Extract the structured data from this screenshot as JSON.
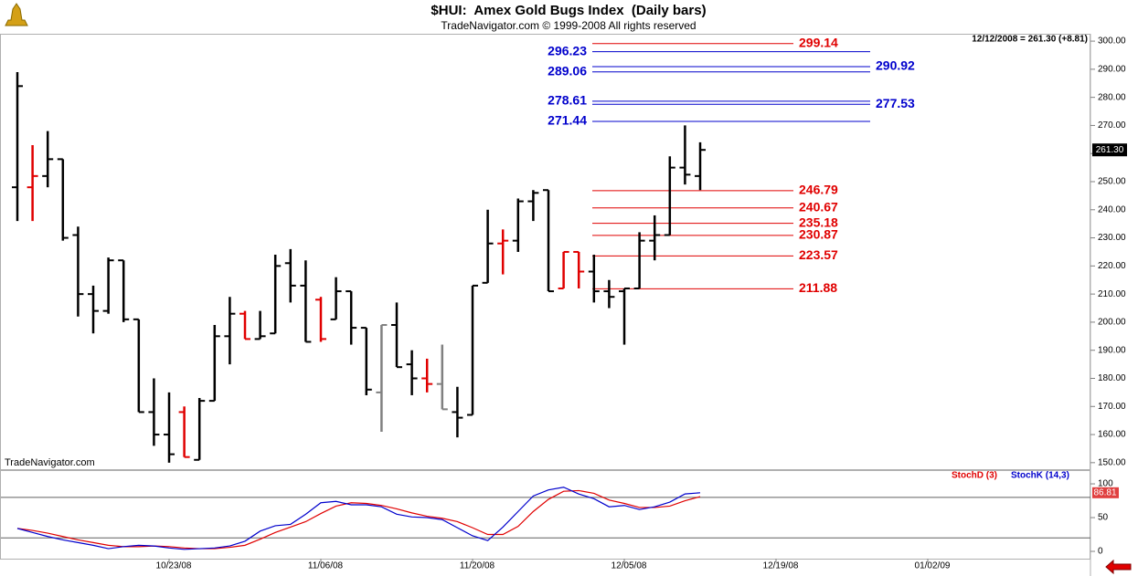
{
  "header": {
    "title": "$HUI:  Amex Gold Bugs Index  (Daily bars)",
    "subtitle": "TradeNavigator.com © 1999-2008 All rights reserved",
    "status": "12/12/2008 = 261.30 (+8.81)",
    "watermark": "TradeNavigator.com"
  },
  "chart_data": [
    {
      "type": "ohlc",
      "x": [
        "10/09/08",
        "10/10/08",
        "10/13/08",
        "10/14/08",
        "10/15/08",
        "10/16/08",
        "10/17/08",
        "10/20/08",
        "10/21/08",
        "10/22/08",
        "10/23/08",
        "10/24/08",
        "10/27/08",
        "10/28/08",
        "10/29/08",
        "10/30/08",
        "10/31/08",
        "11/03/08",
        "11/04/08",
        "11/05/08",
        "11/06/08",
        "11/07/08",
        "11/10/08",
        "11/11/08",
        "11/12/08",
        "11/13/08",
        "11/14/08",
        "11/17/08",
        "11/18/08",
        "11/19/08",
        "11/20/08",
        "11/21/08",
        "11/24/08",
        "11/25/08",
        "11/26/08",
        "11/28/08",
        "12/01/08",
        "12/02/08",
        "12/03/08",
        "12/04/08",
        "12/05/08",
        "12/08/08",
        "12/09/08",
        "12/10/08",
        "12/11/08",
        "12/12/08"
      ],
      "open": [
        248,
        248,
        252,
        258,
        231,
        210,
        204,
        222,
        201,
        168,
        160,
        168,
        151,
        172,
        195,
        203,
        194,
        196,
        221,
        213,
        208,
        201,
        211,
        198,
        175,
        199,
        185,
        180,
        178,
        168,
        167,
        214,
        228,
        229,
        243,
        247,
        212,
        225,
        218,
        211,
        211,
        212,
        229,
        231,
        255,
        252
      ],
      "high": [
        289,
        263,
        268,
        258,
        234,
        213,
        223,
        222,
        201,
        180,
        175,
        170,
        173,
        199,
        209,
        204,
        204,
        224,
        226,
        222,
        209,
        216,
        211,
        198,
        199,
        207,
        190,
        187,
        192,
        177,
        213,
        240,
        233,
        244,
        247,
        247,
        225,
        225,
        224,
        215,
        212,
        232,
        238,
        259,
        270,
        264
      ],
      "low": [
        236,
        236,
        248,
        229,
        202,
        196,
        203,
        200,
        168,
        156,
        150,
        152,
        151,
        172,
        185,
        194,
        194,
        196,
        207,
        193,
        193,
        201,
        192,
        174,
        161,
        184,
        174,
        175,
        169,
        159,
        167,
        214,
        217,
        225,
        236,
        211,
        212,
        212,
        207,
        205,
        192,
        212,
        222,
        231,
        249,
        247
      ],
      "close": [
        284,
        252,
        258,
        230,
        210,
        204,
        222,
        201,
        168,
        160,
        153,
        152,
        172,
        195,
        203,
        194,
        195,
        220,
        213,
        193,
        194,
        211,
        198,
        176,
        199,
        184,
        180,
        178,
        169,
        166,
        213,
        228,
        229,
        243,
        246,
        211,
        225,
        218,
        211,
        209,
        212,
        229,
        231,
        255,
        252.49,
        261.3
      ],
      "colors": [
        "#000000",
        "#e00000",
        "#000000",
        "#000000",
        "#000000",
        "#000000",
        "#000000",
        "#000000",
        "#000000",
        "#000000",
        "#000000",
        "#e00000",
        "#000000",
        "#000000",
        "#000000",
        "#e00000",
        "#000000",
        "#000000",
        "#000000",
        "#000000",
        "#e00000",
        "#000000",
        "#000000",
        "#000000",
        "#808080",
        "#000000",
        "#000000",
        "#e00000",
        "#808080",
        "#000000",
        "#000000",
        "#000000",
        "#e00000",
        "#000000",
        "#000000",
        "#000000",
        "#e00000",
        "#e00000",
        "#000000",
        "#000000",
        "#000000",
        "#000000",
        "#000000",
        "#000000",
        "#000000",
        "#000000"
      ],
      "last_value_label": "261.30",
      "ylim": [
        148,
        302.3
      ],
      "yticks": [
        {
          "value": 150,
          "label": "150.00"
        },
        {
          "value": 160,
          "label": "160.00"
        },
        {
          "value": 170,
          "label": "170.00"
        },
        {
          "value": 180,
          "label": "180.00"
        },
        {
          "value": 190,
          "label": "190.00"
        },
        {
          "value": 200,
          "label": "200.00"
        },
        {
          "value": 210,
          "label": "210.00"
        },
        {
          "value": 220,
          "label": "220.00"
        },
        {
          "value": 230,
          "label": "230.00"
        },
        {
          "value": 240,
          "label": "240.00"
        },
        {
          "value": 250,
          "label": "250.00"
        },
        {
          "value": 260,
          "label": "260.00"
        },
        {
          "value": 270,
          "label": "270.00"
        },
        {
          "value": 280,
          "label": "280.00"
        },
        {
          "value": 290,
          "label": "290.00"
        },
        {
          "value": 300,
          "label": "300.00"
        }
      ],
      "xticks": [
        "10/23/08",
        "11/06/08",
        "11/20/08",
        "12/05/08",
        "12/19/08",
        "01/02/09"
      ],
      "levels": [
        {
          "value": 299.14,
          "color": "#e00000",
          "side": "right"
        },
        {
          "value": 296.23,
          "color": "#0000cc",
          "side": "left"
        },
        {
          "value": 290.92,
          "color": "#0000cc",
          "side": "right"
        },
        {
          "value": 289.06,
          "color": "#0000cc",
          "side": "left"
        },
        {
          "value": 278.61,
          "color": "#0000cc",
          "side": "left"
        },
        {
          "value": 277.53,
          "color": "#0000cc",
          "side": "right"
        },
        {
          "value": 271.44,
          "color": "#0000cc",
          "side": "left"
        },
        {
          "value": 246.79,
          "color": "#e00000",
          "side": "right"
        },
        {
          "value": 240.67,
          "color": "#e00000",
          "side": "right"
        },
        {
          "value": 235.18,
          "color": "#e00000",
          "side": "right"
        },
        {
          "value": 230.87,
          "color": "#e00000",
          "side": "right"
        },
        {
          "value": 223.57,
          "color": "#e00000",
          "side": "right"
        },
        {
          "value": 211.88,
          "color": "#e00000",
          "side": "right"
        }
      ]
    },
    {
      "type": "line",
      "series": [
        {
          "name": "StochD (3)",
          "color": "#e00000",
          "values": [
            34,
            31,
            27,
            22,
            17,
            13,
            9,
            7,
            7,
            8,
            7,
            5,
            4,
            4,
            6,
            9,
            18,
            28,
            36,
            44,
            56,
            67,
            72,
            71,
            68,
            63,
            57,
            52,
            49,
            44,
            35,
            25,
            25,
            37,
            59,
            77,
            89,
            90,
            86,
            76,
            71,
            65,
            65,
            67,
            75,
            81
          ]
        },
        {
          "name": "StochK (14,3)",
          "color": "#0000cc",
          "values": [
            34,
            28,
            22,
            17,
            13,
            9,
            4,
            7,
            9,
            8,
            5,
            3,
            4,
            5,
            8,
            15,
            30,
            38,
            40,
            55,
            72,
            74,
            69,
            69,
            66,
            55,
            51,
            50,
            47,
            35,
            23,
            16,
            36,
            59,
            82,
            91,
            95,
            85,
            78,
            66,
            68,
            62,
            66,
            73,
            85,
            86.81
          ]
        }
      ],
      "ylim": [
        -13.5,
        119
      ],
      "yticks": [
        0,
        50,
        100
      ],
      "hlines": [
        20,
        80
      ]
    }
  ]
}
